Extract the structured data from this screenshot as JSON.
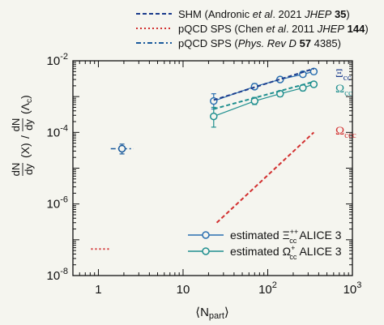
{
  "chart_data": {
    "type": "scatter",
    "xscale": "log",
    "yscale": "log",
    "xlim": [
      0.5,
      1000
    ],
    "ylim": [
      1e-08,
      0.01
    ],
    "xlabel": "⟨N_part⟩",
    "ylabel": "(dN/dy)(X) / (dN/dy)(Λc)",
    "x_ticks": [
      {
        "value": 1,
        "label": "1"
      },
      {
        "value": 10,
        "label": "10"
      },
      {
        "value": 100,
        "label": "10^2"
      },
      {
        "value": 1000,
        "label": "10^3"
      }
    ],
    "y_ticks": [
      {
        "value": 1e-08,
        "label": "10^-8"
      },
      {
        "value": 1e-06,
        "label": "10^-6"
      },
      {
        "value": 0.0001,
        "label": "10^-4"
      },
      {
        "value": 0.01,
        "label": "10^-2"
      }
    ],
    "legend_top": {
      "placement": "top",
      "entries": [
        {
          "style": "dash",
          "color": "#1a3b8c",
          "text": "SHM (Andronic et al. 2021 JHEP 35)"
        },
        {
          "style": "dot",
          "color": "#d23030",
          "text": "pQCD SPS (Chen et al. 2011 JHEP 144)"
        },
        {
          "style": "dashdot",
          "color": "#1a5a9c",
          "text": "pQCD SPS (Phys. Rev D 57 4385)"
        }
      ]
    },
    "legend_bottom": {
      "placement": "lower-right",
      "entries": [
        {
          "color": "#2a6fb0",
          "text": "estimated Ξcc++ ALICE 3"
        },
        {
          "color": "#1f8f8f",
          "text": "estimated Ωcc+ ALICE 3"
        }
      ]
    },
    "series": [
      {
        "name": "Ξcc",
        "kind": "points",
        "color": "#2a6fb0",
        "points": [
          {
            "x": 23,
            "y": 0.00075,
            "err_lo": 0.00045,
            "err_hi": 0.0012
          },
          {
            "x": 70,
            "y": 0.0019,
            "err_lo": 0.0016,
            "err_hi": 0.0023
          },
          {
            "x": 140,
            "y": 0.003,
            "err_lo": 0.0026,
            "err_hi": 0.0035
          },
          {
            "x": 260,
            "y": 0.0042,
            "err_lo": 0.0036,
            "err_hi": 0.005
          },
          {
            "x": 350,
            "y": 0.005,
            "err_lo": 0.0042,
            "err_hi": 0.006
          }
        ]
      },
      {
        "name": "Ωcc",
        "kind": "points",
        "color": "#1f8f8f",
        "points": [
          {
            "x": 23,
            "y": 0.00028,
            "err_lo": 0.00014,
            "err_hi": 0.0005
          },
          {
            "x": 70,
            "y": 0.00075,
            "err_lo": 0.0006,
            "err_hi": 0.00095
          },
          {
            "x": 140,
            "y": 0.0012,
            "err_lo": 0.001,
            "err_hi": 0.00145
          },
          {
            "x": 260,
            "y": 0.00175,
            "err_lo": 0.00145,
            "err_hi": 0.0021
          },
          {
            "x": 350,
            "y": 0.0022,
            "err_lo": 0.00185,
            "err_hi": 0.0026
          }
        ]
      },
      {
        "name": "Ξcc SHM",
        "kind": "line",
        "style": "dash",
        "color": "#1a3b8c",
        "x": [
          23,
          350
        ],
        "y": [
          0.0008,
          0.006
        ]
      },
      {
        "name": "Ωcc SHM",
        "kind": "line",
        "style": "dash",
        "color": "#1f8f8f",
        "x": [
          23,
          350
        ],
        "y": [
          0.00045,
          0.0026
        ]
      },
      {
        "name": "Ωccc SHM",
        "kind": "line",
        "style": "dash",
        "color": "#d23030",
        "x": [
          25,
          350
        ],
        "y": [
          3e-07,
          0.0001
        ]
      },
      {
        "name": "pQCD SPS Chen",
        "kind": "line",
        "style": "dot",
        "color": "#d23030",
        "x": [
          0.82,
          1.35
        ],
        "y": [
          5.5e-08,
          5.5e-08
        ]
      },
      {
        "name": "pQCD SPS PRD",
        "kind": "points",
        "color": "#1a5a9c",
        "dashdot_bar": true,
        "points": [
          {
            "x": 1.9,
            "y": 3.5e-05,
            "err_lo": 2.5e-05,
            "err_hi": 4.7e-05,
            "xerr": [
              1.4,
              2.6
            ]
          }
        ]
      }
    ],
    "annotations": [
      {
        "text": "Ξcc",
        "color": "#1a3b8c"
      },
      {
        "text": "Ωcc",
        "color": "#1f8f8f"
      },
      {
        "text": "Ωccc",
        "color": "#d23030"
      }
    ]
  }
}
